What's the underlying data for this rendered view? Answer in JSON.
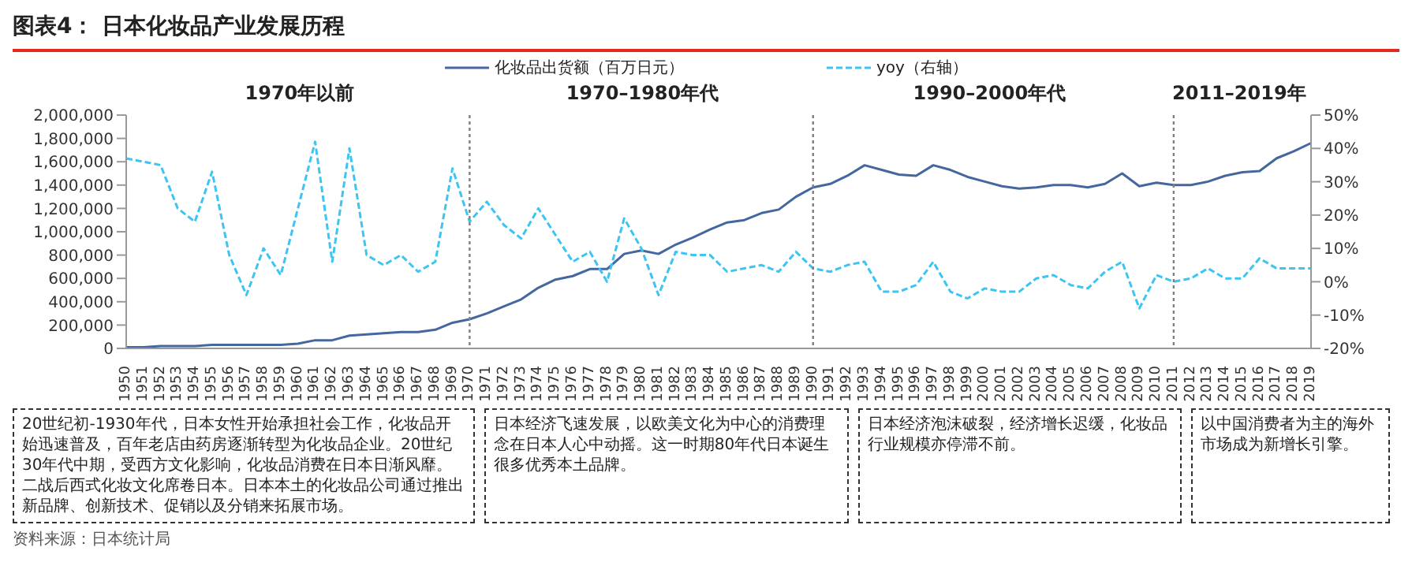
{
  "chart_data": {
    "type": "line",
    "title": "图表4：  日本化妆品产业发展历程",
    "categories": [
      "1950",
      "1951",
      "1952",
      "1953",
      "1954",
      "1955",
      "1956",
      "1957",
      "1958",
      "1959",
      "1960",
      "1961",
      "1962",
      "1963",
      "1964",
      "1965",
      "1966",
      "1967",
      "1968",
      "1969",
      "1970",
      "1971",
      "1972",
      "1973",
      "1974",
      "1975",
      "1976",
      "1977",
      "1978",
      "1979",
      "1980",
      "1981",
      "1982",
      "1983",
      "1984",
      "1985",
      "1986",
      "1987",
      "1988",
      "1989",
      "1990",
      "1991",
      "1992",
      "1993",
      "1994",
      "1995",
      "1996",
      "1997",
      "1998",
      "1999",
      "2000",
      "2001",
      "2002",
      "2003",
      "2004",
      "2005",
      "2006",
      "2007",
      "2008",
      "2009",
      "2010",
      "2011",
      "2012",
      "2013",
      "2014",
      "2015",
      "2016",
      "2017",
      "2018",
      "2019"
    ],
    "series": [
      {
        "name": "化妆品出货额（百万日元）",
        "color": "#44679f",
        "line_style": "solid",
        "values": [
          10000,
          10000,
          20000,
          20000,
          20000,
          30000,
          30000,
          30000,
          30000,
          30000,
          40000,
          70000,
          70000,
          110000,
          120000,
          130000,
          140000,
          140000,
          160000,
          220000,
          250000,
          300000,
          360000,
          420000,
          520000,
          590000,
          620000,
          680000,
          680000,
          810000,
          840000,
          810000,
          890000,
          950000,
          1020000,
          1080000,
          1100000,
          1160000,
          1190000,
          1300000,
          1380000,
          1410000,
          1480000,
          1570000,
          1530000,
          1490000,
          1480000,
          1570000,
          1530000,
          1470000,
          1430000,
          1390000,
          1370000,
          1380000,
          1400000,
          1400000,
          1380000,
          1410000,
          1500000,
          1390000,
          1420000,
          1400000,
          1400000,
          1430000,
          1480000,
          1510000,
          1520000,
          1630000,
          1690000,
          1760000
        ]
      },
      {
        "name": "yoy（右轴）",
        "color": "#3cc4f2",
        "line_style": "dashed",
        "axis": "y2",
        "values": [
          37,
          36,
          35,
          22,
          18,
          33,
          8,
          -4,
          10,
          2,
          22,
          42,
          6,
          40,
          8,
          5,
          8,
          3,
          6,
          34,
          18,
          24,
          17,
          13,
          22,
          14,
          6,
          9,
          0,
          19,
          10,
          -4,
          9,
          8,
          8,
          3,
          4,
          5,
          3,
          9,
          4,
          3,
          5,
          6,
          -3,
          -3,
          -1,
          6,
          -3,
          -5,
          -2,
          -3,
          -3,
          1,
          2,
          -1,
          -2,
          3,
          6,
          -8,
          2,
          0,
          1,
          4,
          1,
          1,
          7,
          4,
          4,
          4
        ]
      }
    ],
    "ylim": [
      0,
      2000000
    ],
    "yticks": [
      0,
      {
        "value": 200000,
        "label": "200,000"
      },
      {
        "value": 400000,
        "label": "400,000"
      },
      {
        "value": 600000,
        "label": "600,000"
      },
      {
        "value": 800000,
        "label": "800,000"
      },
      {
        "value": 1000000,
        "label": "1,000,000"
      },
      {
        "value": 1200000,
        "label": "1,200,000"
      },
      {
        "value": 1400000,
        "label": "1,400,000"
      },
      {
        "value": 1600000,
        "label": "1,600,000"
      },
      {
        "value": 1800000,
        "label": "1,800,000"
      },
      {
        "value": 2000000,
        "label": "2,000,000"
      }
    ],
    "y2lim": [
      -20,
      50
    ],
    "y2ticks": [
      {
        "value": -20,
        "label": "-20%"
      },
      {
        "value": -10,
        "label": "-10%"
      },
      {
        "value": 0,
        "label": "0%"
      },
      {
        "value": 10,
        "label": "10%"
      },
      {
        "value": 20,
        "label": "20%"
      },
      {
        "value": 30,
        "label": "30%"
      },
      {
        "value": 40,
        "label": "40%"
      },
      {
        "value": 50,
        "label": "50%"
      }
    ],
    "ref_lines": [
      {
        "axis": "x",
        "value": "1970",
        "color": "#808080",
        "line_style": "dotted"
      },
      {
        "axis": "x",
        "value": "1990",
        "color": "#808080",
        "line_style": "dotted"
      },
      {
        "axis": "x",
        "value": "2011",
        "color": "#808080",
        "line_style": "dotted"
      }
    ],
    "legend": "top",
    "marker": "none",
    "annotations": [
      "1970年以前",
      "1970–1980年代",
      "1990–2000年代",
      "2011–2019年",
      "20世纪初-1930年代，日本女性开始承担社会工作，化妆品开始迅速普及，百年老店由药房逐渐转型为化妆品企业。20世纪30年代中期，受西方文化影响，化妆品消费在日本日渐风靡。二战后西式化妆文化席卷日本。日本本土的化妆品公司通过推出新品牌、创新技术、促销以及分销来拓展市场。",
      "日本经济飞速发展，以欧美文化为中心的消费理念在日本人心中动摇。这一时期80年代日本诞生很多优秀本土品牌。",
      "日本经济泡沫破裂，经济增长迟缓，化妆品行业规模亦停滞不前。",
      "以中国消费者为主的海外市场成为新增长引擎。",
      "资料来源：日本统计局"
    ]
  }
}
